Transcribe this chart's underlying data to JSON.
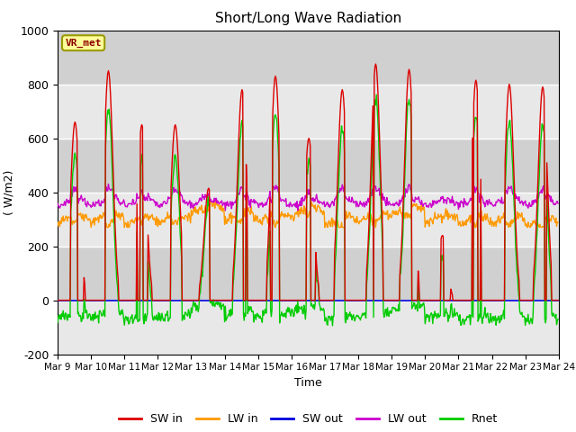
{
  "title": "Short/Long Wave Radiation",
  "ylabel": "( W/m2)",
  "xlabel": "Time",
  "ylim": [
    -200,
    1000
  ],
  "yticks": [
    -200,
    0,
    200,
    400,
    600,
    800,
    1000
  ],
  "x_tick_labels": [
    "Mar 9",
    "Mar 10",
    "Mar 11",
    "Mar 12",
    "Mar 13",
    "Mar 14",
    "Mar 15",
    "Mar 16",
    "Mar 17",
    "Mar 18",
    "Mar 19",
    "Mar 20",
    "Mar 21",
    "Mar 22",
    "Mar 23",
    "Mar 24"
  ],
  "background_color": "#d8d8d8",
  "station_label": "VR_met",
  "colors": {
    "SW_in": "#dd0000",
    "LW_in": "#ff9900",
    "SW_out": "#0000dd",
    "LW_out": "#cc00cc",
    "Rnet": "#00cc00"
  },
  "legend_labels": [
    "SW in",
    "LW in",
    "SW out",
    "LW out",
    "Rnet"
  ]
}
